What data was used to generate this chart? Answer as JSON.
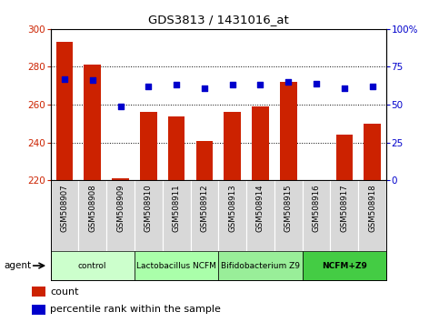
{
  "title": "GDS3813 / 1431016_at",
  "samples": [
    "GSM508907",
    "GSM508908",
    "GSM508909",
    "GSM508910",
    "GSM508911",
    "GSM508912",
    "GSM508913",
    "GSM508914",
    "GSM508915",
    "GSM508916",
    "GSM508917",
    "GSM508918"
  ],
  "bar_values": [
    293,
    281,
    221,
    256,
    254,
    241,
    256,
    259,
    272,
    220,
    244,
    250
  ],
  "percentile_values": [
    67,
    66,
    49,
    62,
    63,
    61,
    63,
    63,
    65,
    64,
    61,
    62
  ],
  "bar_bottom": 220,
  "ylim_left": [
    220,
    300
  ],
  "ylim_right": [
    0,
    100
  ],
  "yticks_left": [
    220,
    240,
    260,
    280,
    300
  ],
  "yticks_right": [
    0,
    25,
    50,
    75,
    100
  ],
  "yticklabels_right": [
    "0",
    "25",
    "50",
    "75",
    "100%"
  ],
  "bar_color": "#cc2200",
  "percentile_color": "#0000cc",
  "groups": [
    {
      "label": "control",
      "start": 0,
      "end": 2,
      "color": "#ccffcc"
    },
    {
      "label": "Lactobacillus NCFM",
      "start": 3,
      "end": 5,
      "color": "#aaffaa"
    },
    {
      "label": "Bifidobacterium Z9",
      "start": 6,
      "end": 8,
      "color": "#99ee99"
    },
    {
      "label": "NCFM+Z9",
      "start": 9,
      "end": 11,
      "color": "#44cc44"
    }
  ],
  "agent_label": "agent",
  "legend_count_label": "count",
  "legend_percentile_label": "percentile rank within the sample",
  "grid_color": "#000000",
  "background_color": "#ffffff",
  "tick_label_color_left": "#cc2200",
  "tick_label_color_right": "#0000cc",
  "gray_sample_bg": "#d8d8d8"
}
